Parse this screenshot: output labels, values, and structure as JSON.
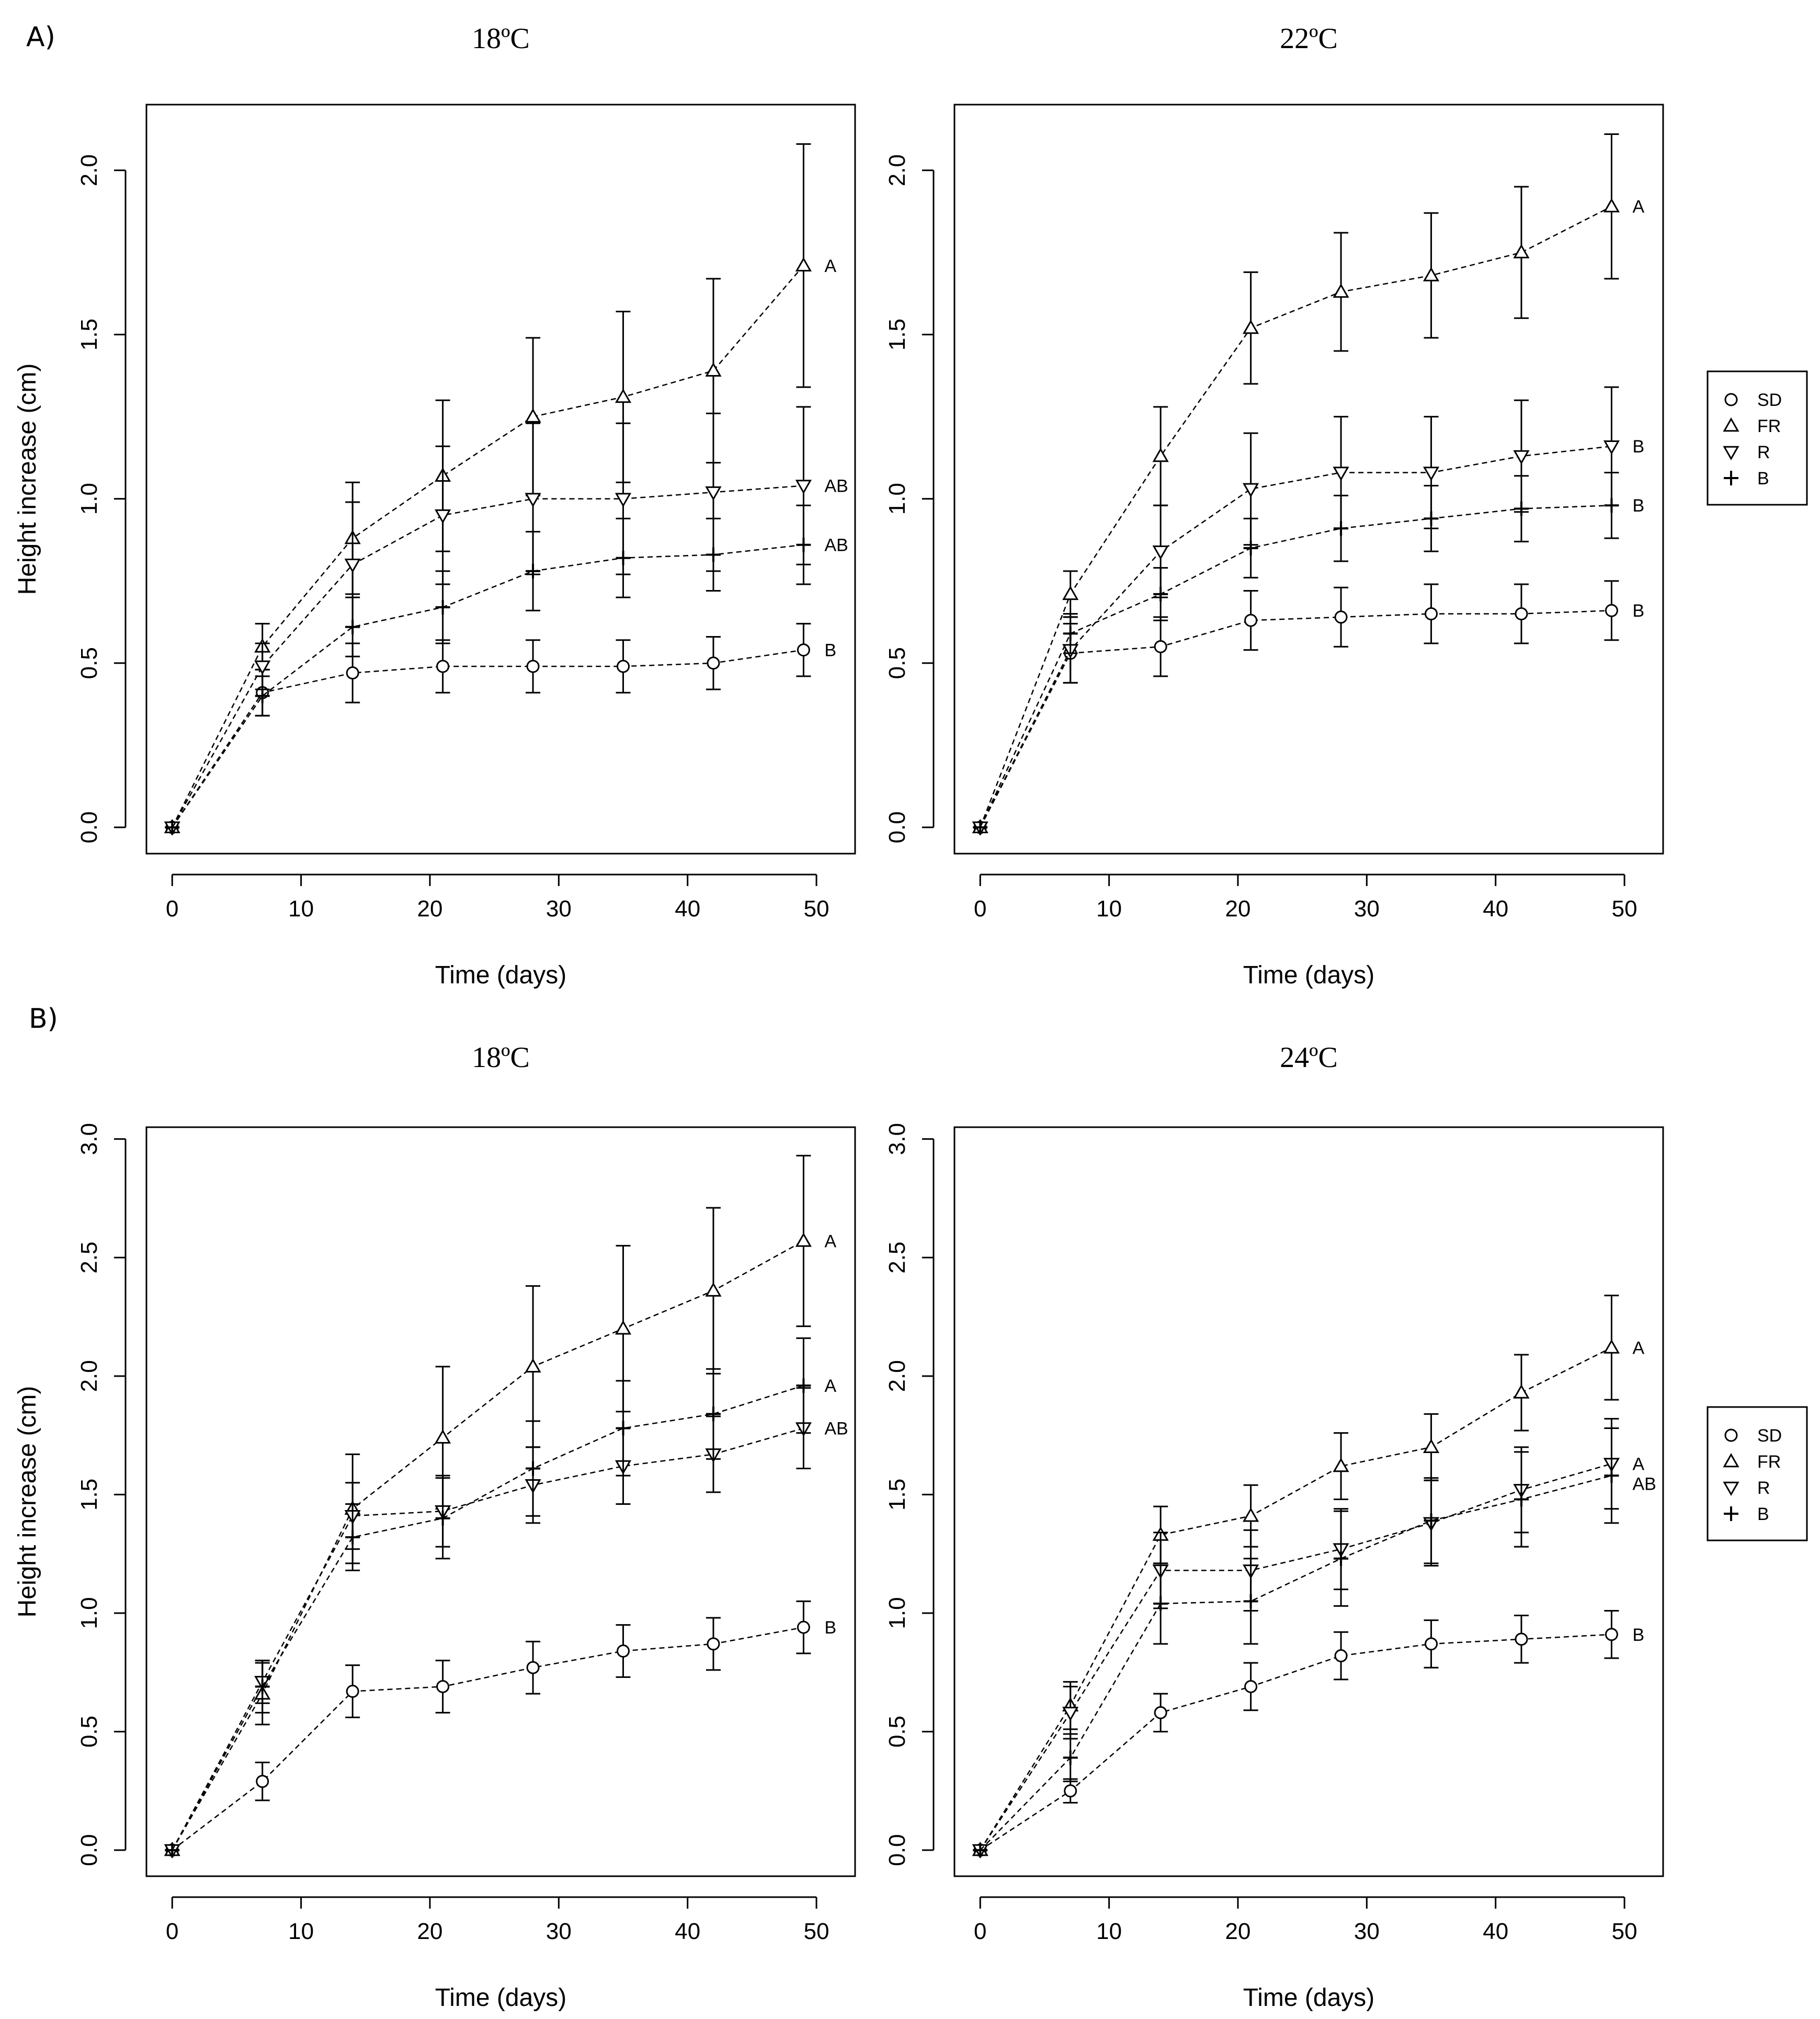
{
  "figure": {
    "section_labels": [
      "A)",
      "B)"
    ],
    "legend": {
      "entries": [
        {
          "symbol": "circle",
          "label": "SD"
        },
        {
          "symbol": "triangle-up",
          "label": "FR"
        },
        {
          "symbol": "triangle-down",
          "label": "R"
        },
        {
          "symbol": "plus",
          "label": "B"
        }
      ]
    }
  },
  "chart_data": [
    {
      "type": "line",
      "section": "A)",
      "title": "18ºC",
      "xlabel": "Time (days)",
      "ylabel": "Height increase (cm)",
      "xlim": [
        -2,
        53
      ],
      "ylim": [
        -0.08,
        2.2
      ],
      "xticks": [
        0,
        10,
        20,
        30,
        40,
        50
      ],
      "yticks": [
        0.0,
        0.5,
        1.0,
        1.5,
        2.0
      ],
      "x": [
        0,
        7,
        14,
        21,
        28,
        35,
        42,
        49
      ],
      "series": [
        {
          "name": "SD",
          "marker": "circle",
          "values": [
            0,
            0.41,
            0.47,
            0.49,
            0.49,
            0.49,
            0.5,
            0.54
          ],
          "errors": [
            0,
            0.07,
            0.09,
            0.08,
            0.08,
            0.08,
            0.08,
            0.08
          ],
          "letter": "B"
        },
        {
          "name": "FR",
          "marker": "triangle-up",
          "values": [
            0,
            0.55,
            0.88,
            1.07,
            1.25,
            1.31,
            1.39,
            1.71
          ],
          "errors": [
            0,
            0.07,
            0.17,
            0.23,
            0.24,
            0.26,
            0.28,
            0.37
          ],
          "letter": "A"
        },
        {
          "name": "R",
          "marker": "triangle-down",
          "values": [
            0,
            0.49,
            0.8,
            0.95,
            1.0,
            1.0,
            1.02,
            1.04
          ],
          "errors": [
            0,
            0.07,
            0.19,
            0.21,
            0.23,
            0.23,
            0.24,
            0.24
          ],
          "letter": "AB"
        },
        {
          "name": "B",
          "marker": "plus",
          "values": [
            0,
            0.4,
            0.61,
            0.67,
            0.78,
            0.82,
            0.83,
            0.86
          ],
          "errors": [
            0,
            0.06,
            0.09,
            0.11,
            0.12,
            0.12,
            0.11,
            0.12
          ],
          "letter": "AB"
        }
      ]
    },
    {
      "type": "line",
      "section": "A)",
      "title": "22ºC",
      "xlabel": "Time (days)",
      "ylabel": "",
      "xlim": [
        -2,
        53
      ],
      "ylim": [
        -0.08,
        2.2
      ],
      "xticks": [
        0,
        10,
        20,
        30,
        40,
        50
      ],
      "yticks": [
        0.0,
        0.5,
        1.0,
        1.5,
        2.0
      ],
      "x": [
        0,
        7,
        14,
        21,
        28,
        35,
        42,
        49
      ],
      "series": [
        {
          "name": "SD",
          "marker": "circle",
          "values": [
            0,
            0.53,
            0.55,
            0.63,
            0.64,
            0.65,
            0.65,
            0.66
          ],
          "errors": [
            0,
            0.09,
            0.09,
            0.09,
            0.09,
            0.09,
            0.09,
            0.09
          ],
          "letter": "B"
        },
        {
          "name": "FR",
          "marker": "triangle-up",
          "values": [
            0,
            0.71,
            1.13,
            1.52,
            1.63,
            1.68,
            1.75,
            1.89
          ],
          "errors": [
            0,
            0.07,
            0.15,
            0.17,
            0.18,
            0.19,
            0.2,
            0.22
          ],
          "letter": "A"
        },
        {
          "name": "R",
          "marker": "triangle-down",
          "values": [
            0,
            0.54,
            0.84,
            1.03,
            1.08,
            1.08,
            1.13,
            1.16
          ],
          "errors": [
            0,
            0.1,
            0.14,
            0.17,
            0.17,
            0.17,
            0.17,
            0.18
          ],
          "letter": "B"
        },
        {
          "name": "B",
          "marker": "plus",
          "values": [
            0,
            0.59,
            0.71,
            0.85,
            0.91,
            0.94,
            0.97,
            0.98
          ],
          "errors": [
            0,
            0.06,
            0.08,
            0.09,
            0.1,
            0.1,
            0.1,
            0.1
          ],
          "letter": "B"
        }
      ]
    },
    {
      "type": "line",
      "section": "B)",
      "title": "18ºC",
      "xlabel": "Time (days)",
      "ylabel": "Height increase (cm)",
      "xlim": [
        -2,
        53
      ],
      "ylim": [
        -0.11,
        3.05
      ],
      "xticks": [
        0,
        10,
        20,
        30,
        40,
        50
      ],
      "yticks": [
        0.0,
        0.5,
        1.0,
        1.5,
        2.0,
        2.5,
        3.0
      ],
      "x": [
        0,
        7,
        14,
        21,
        28,
        35,
        42,
        49
      ],
      "series": [
        {
          "name": "SD",
          "marker": "circle",
          "values": [
            0,
            0.29,
            0.67,
            0.69,
            0.77,
            0.84,
            0.87,
            0.94
          ],
          "errors": [
            0,
            0.08,
            0.11,
            0.11,
            0.11,
            0.11,
            0.11,
            0.11
          ],
          "letter": "B"
        },
        {
          "name": "FR",
          "marker": "triangle-up",
          "values": [
            0,
            0.66,
            1.44,
            1.74,
            2.04,
            2.2,
            2.36,
            2.57
          ],
          "errors": [
            0,
            0.13,
            0.23,
            0.3,
            0.34,
            0.35,
            0.35,
            0.36
          ],
          "letter": "A"
        },
        {
          "name": "R",
          "marker": "triangle-down",
          "values": [
            0,
            0.71,
            1.41,
            1.43,
            1.54,
            1.62,
            1.67,
            1.78
          ],
          "errors": [
            0,
            0.09,
            0.14,
            0.15,
            0.16,
            0.16,
            0.16,
            0.17
          ],
          "letter": "AB"
        },
        {
          "name": "B",
          "marker": "plus",
          "values": [
            0,
            0.69,
            1.32,
            1.4,
            1.61,
            1.78,
            1.84,
            1.96
          ],
          "errors": [
            0,
            0.11,
            0.14,
            0.17,
            0.2,
            0.2,
            0.19,
            0.2
          ],
          "letter": "A"
        }
      ]
    },
    {
      "type": "line",
      "section": "B)",
      "title": "24ºC",
      "xlabel": "Time (days)",
      "ylabel": "",
      "xlim": [
        -2,
        53
      ],
      "ylim": [
        -0.11,
        3.05
      ],
      "xticks": [
        0,
        10,
        20,
        30,
        40,
        50
      ],
      "yticks": [
        0.0,
        0.5,
        1.0,
        1.5,
        2.0,
        2.5,
        3.0
      ],
      "x": [
        0,
        7,
        14,
        21,
        28,
        35,
        42,
        49
      ],
      "series": [
        {
          "name": "SD",
          "marker": "circle",
          "values": [
            0,
            0.25,
            0.58,
            0.69,
            0.82,
            0.87,
            0.89,
            0.91
          ],
          "errors": [
            0,
            0.05,
            0.08,
            0.1,
            0.1,
            0.1,
            0.1,
            0.1
          ],
          "letter": "B"
        },
        {
          "name": "FR",
          "marker": "triangle-up",
          "values": [
            0,
            0.61,
            1.33,
            1.41,
            1.62,
            1.7,
            1.93,
            2.12
          ],
          "errors": [
            0,
            0.1,
            0.12,
            0.13,
            0.14,
            0.14,
            0.16,
            0.22
          ],
          "letter": "A"
        },
        {
          "name": "R",
          "marker": "triangle-down",
          "values": [
            0,
            0.58,
            1.18,
            1.18,
            1.27,
            1.38,
            1.52,
            1.63
          ],
          "errors": [
            0,
            0.11,
            0.16,
            0.17,
            0.17,
            0.18,
            0.18,
            0.19
          ],
          "letter": "A"
        },
        {
          "name": "B",
          "marker": "plus",
          "values": [
            0,
            0.39,
            1.04,
            1.05,
            1.23,
            1.39,
            1.48,
            1.58
          ],
          "errors": [
            0,
            0.1,
            0.17,
            0.18,
            0.2,
            0.18,
            0.2,
            0.2
          ],
          "letter": "AB"
        }
      ]
    }
  ]
}
